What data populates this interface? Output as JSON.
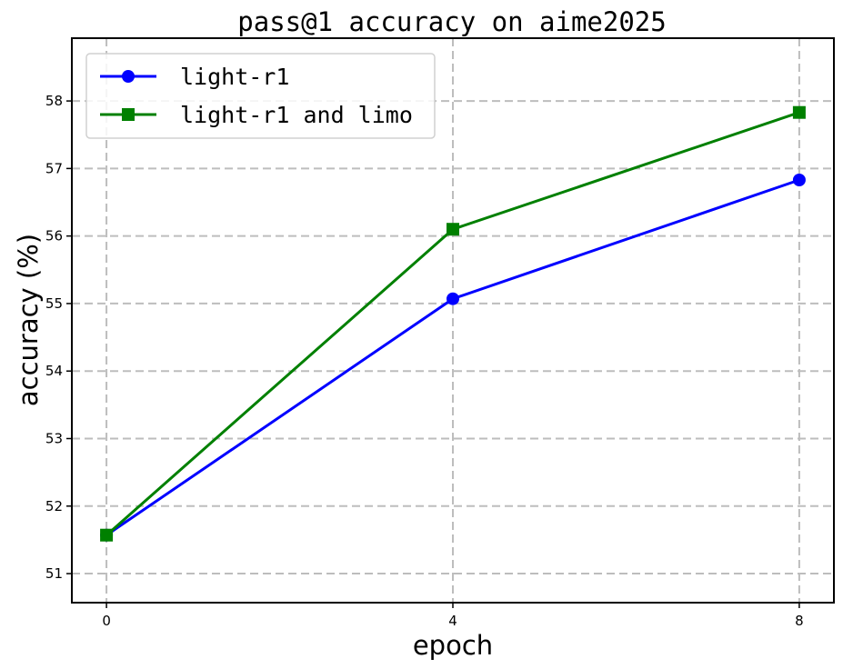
{
  "chart_data": {
    "type": "line",
    "title": "pass@1 accuracy on aime2025",
    "xlabel": "epoch",
    "ylabel": "accuracy (%)",
    "x": [
      0,
      4,
      8
    ],
    "xticks": [
      0,
      4,
      8
    ],
    "yticks": [
      51,
      52,
      53,
      54,
      55,
      56,
      57,
      58
    ],
    "xlim": [
      -0.4,
      8.4
    ],
    "ylim": [
      50.57,
      58.93
    ],
    "grid": true,
    "legend_position": "top-left",
    "series": [
      {
        "name": "light-r1",
        "values": [
          51.57,
          55.07,
          56.83
        ],
        "color": "#0000ff",
        "marker": "circle"
      },
      {
        "name": "light-r1 and limo",
        "values": [
          51.57,
          56.1,
          57.83
        ],
        "color": "#008000",
        "marker": "square"
      }
    ]
  }
}
